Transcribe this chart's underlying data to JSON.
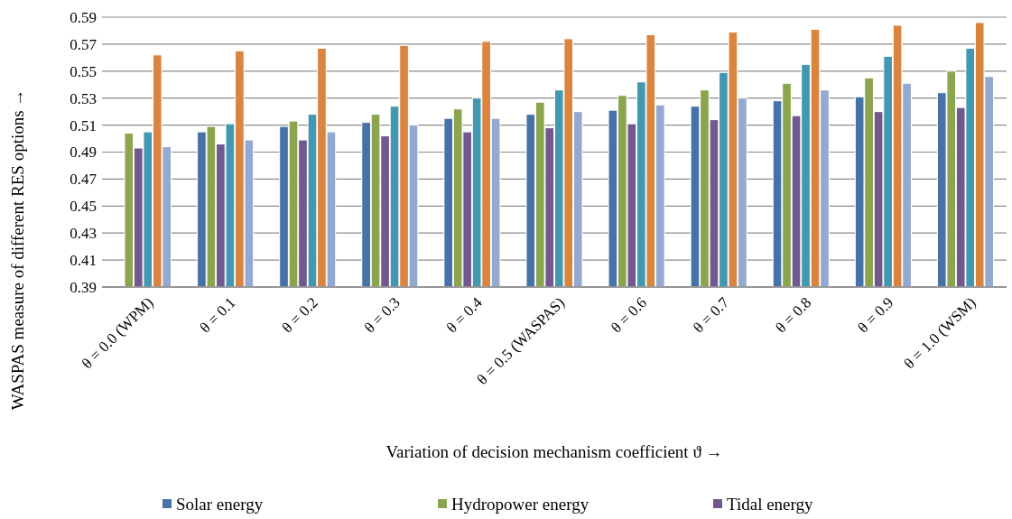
{
  "chart_data": {
    "type": "bar",
    "xlabel": "Variation of decision mechanism coefficient ϑ →",
    "ylabel": "WASPAS measure of different RES options →",
    "categories": [
      "θ = 0.0 (WPM)",
      "θ = 0.1",
      "θ = 0.2",
      "θ = 0.3",
      "θ = 0.4",
      "θ = 0.5 (WASPAS)",
      "θ = 0.6",
      "θ = 0.7",
      "θ = 0.8",
      "θ = 0.9",
      "θ = 1.0 (WSM)"
    ],
    "series": [
      {
        "name": "Solar energy",
        "color": "#4672a8",
        "values": [
          0.39,
          0.505,
          0.509,
          0.512,
          0.515,
          0.518,
          0.521,
          0.524,
          0.528,
          0.531,
          0.534
        ]
      },
      {
        "name": "Hydropower energy",
        "color": "#8ba54f",
        "values": [
          0.504,
          0.509,
          0.513,
          0.518,
          0.522,
          0.527,
          0.532,
          0.536,
          0.541,
          0.545,
          0.55
        ]
      },
      {
        "name": "Tidal energy",
        "color": "#71598f",
        "values": [
          0.493,
          0.496,
          0.499,
          0.502,
          0.505,
          0.508,
          0.511,
          0.514,
          0.517,
          0.52,
          0.523
        ]
      },
      {
        "color": "#4298b0",
        "values": [
          0.505,
          0.511,
          0.518,
          0.524,
          0.53,
          0.536,
          0.542,
          0.549,
          0.555,
          0.561,
          0.567
        ]
      },
      {
        "color": "#db843d",
        "values": [
          0.562,
          0.565,
          0.567,
          0.569,
          0.572,
          0.574,
          0.577,
          0.579,
          0.581,
          0.584,
          0.586
        ]
      },
      {
        "color": "#93a9cf",
        "values": [
          0.494,
          0.499,
          0.505,
          0.51,
          0.515,
          0.52,
          0.525,
          0.53,
          0.536,
          0.541,
          0.546
        ]
      }
    ],
    "ylim": [
      0.39,
      0.59
    ],
    "yticks": [
      0.39,
      0.41,
      0.43,
      0.45,
      0.47,
      0.49,
      0.51,
      0.53,
      0.55,
      0.57,
      0.59
    ],
    "grid": "y",
    "legend": "bottom"
  }
}
